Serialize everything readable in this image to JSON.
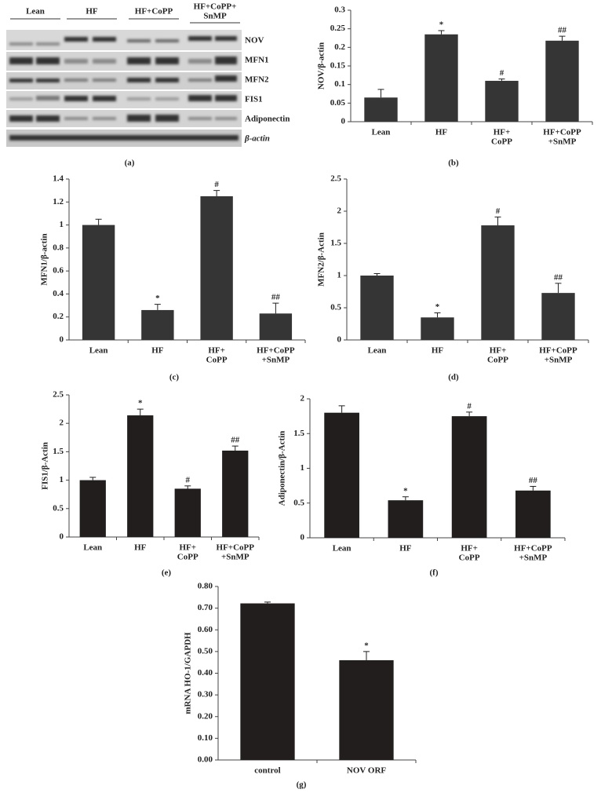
{
  "blot": {
    "groups": [
      [
        "Lean"
      ],
      [
        "HF"
      ],
      [
        "HF+CoPP"
      ],
      [
        "HF+CoPP+",
        "SnMP"
      ]
    ],
    "proteins": [
      "NOV",
      "MFN1",
      "MFN2",
      "FIS1",
      "Adiponectin",
      "β-actin"
    ],
    "caption": "(a)"
  },
  "chart_data": [
    {
      "type": "bar",
      "ylabel": "NOV/β-actin",
      "caption": "(b)",
      "color": "#353535",
      "categories": [
        [
          "Lean"
        ],
        [
          "HF"
        ],
        [
          "HF+",
          "CoPP"
        ],
        [
          "HF+CoPP",
          "+SnMP"
        ]
      ],
      "values": [
        0.065,
        0.235,
        0.11,
        0.218
      ],
      "errors": [
        0.022,
        0.01,
        0.005,
        0.012
      ],
      "annotations": [
        null,
        "*",
        "#",
        "##"
      ],
      "ylim": [
        0,
        0.3
      ],
      "yticks": [
        0,
        0.05,
        0.1,
        0.15,
        0.2,
        0.25,
        0.3
      ]
    },
    {
      "type": "bar",
      "ylabel": "MFN1/β-actin",
      "caption": "(c)",
      "color": "#353535",
      "categories": [
        [
          "Lean"
        ],
        [
          "HF"
        ],
        [
          "HF+",
          "CoPP"
        ],
        [
          "HF+CoPP",
          "+SnMP"
        ]
      ],
      "values": [
        1.0,
        0.26,
        1.25,
        0.23
      ],
      "errors": [
        0.05,
        0.05,
        0.05,
        0.09
      ],
      "annotations": [
        null,
        "*",
        "#",
        "##"
      ],
      "ylim": [
        0,
        1.4
      ],
      "yticks": [
        0,
        0.2,
        0.4,
        0.6,
        0.8,
        1,
        1.2,
        1.4
      ]
    },
    {
      "type": "bar",
      "ylabel": "MFN2/β-Actin",
      "caption": "(d)",
      "color": "#353535",
      "categories": [
        [
          "Lean"
        ],
        [
          "HF"
        ],
        [
          "HF+",
          "CoPP"
        ],
        [
          "HF+CoPP",
          "+SnMP"
        ]
      ],
      "values": [
        1.0,
        0.35,
        1.78,
        0.73
      ],
      "errors": [
        0.03,
        0.07,
        0.13,
        0.15
      ],
      "annotations": [
        null,
        "*",
        "#",
        "##"
      ],
      "ylim": [
        0,
        2.5
      ],
      "yticks": [
        0,
        0.5,
        1,
        1.5,
        2,
        2.5
      ]
    },
    {
      "type": "bar",
      "ylabel": "FIS1/β-Actin",
      "caption": "(e)",
      "color": "#221e1e",
      "categories": [
        [
          "Lean"
        ],
        [
          "HF"
        ],
        [
          "HF+",
          "CoPP"
        ],
        [
          "HF+CoPP",
          "+SnMP"
        ]
      ],
      "values": [
        1.0,
        2.14,
        0.85,
        1.52
      ],
      "errors": [
        0.05,
        0.11,
        0.05,
        0.08
      ],
      "annotations": [
        null,
        "*",
        "#",
        "##"
      ],
      "ylim": [
        0,
        2.5
      ],
      "yticks": [
        0,
        0.5,
        1,
        1.5,
        2,
        2.5
      ]
    },
    {
      "type": "bar",
      "ylabel": "Adiponectin/β-Actin",
      "caption": "(f)",
      "color": "#221e1e",
      "categories": [
        [
          "Lean"
        ],
        [
          "HF"
        ],
        [
          "HF+",
          "CoPP"
        ],
        [
          "HF+CoPP",
          "+SnMP"
        ]
      ],
      "values": [
        1.8,
        0.54,
        1.75,
        0.68
      ],
      "errors": [
        0.1,
        0.05,
        0.06,
        0.06
      ],
      "annotations": [
        null,
        "*",
        "#",
        "##"
      ],
      "ylim": [
        0,
        2
      ],
      "yticks": [
        0,
        0.5,
        1,
        1.5,
        2
      ]
    },
    {
      "type": "bar",
      "ylabel": "mRNA HO-1/GAPDH",
      "caption": "(g)",
      "color": "#221e1e",
      "categories": [
        [
          "control"
        ],
        [
          "NOV ORF"
        ]
      ],
      "values": [
        0.722,
        0.46
      ],
      "errors": [
        0.006,
        0.04
      ],
      "annotations": [
        null,
        "*"
      ],
      "ylim": [
        0,
        0.8
      ],
      "yticks": [
        {
          "value": 0,
          "label": "0.00"
        },
        {
          "value": 0.1,
          "label": "0.10"
        },
        {
          "value": 0.2,
          "label": "0.20"
        },
        {
          "value": 0.3,
          "label": "0.30"
        },
        {
          "value": 0.4,
          "label": "0.40"
        },
        {
          "value": 0.5,
          "label": "0.50"
        },
        {
          "value": 0.6,
          "label": "0.60"
        },
        {
          "value": 0.7,
          "label": "0.70"
        },
        {
          "value": 0.8,
          "label": "0.80"
        }
      ]
    }
  ]
}
